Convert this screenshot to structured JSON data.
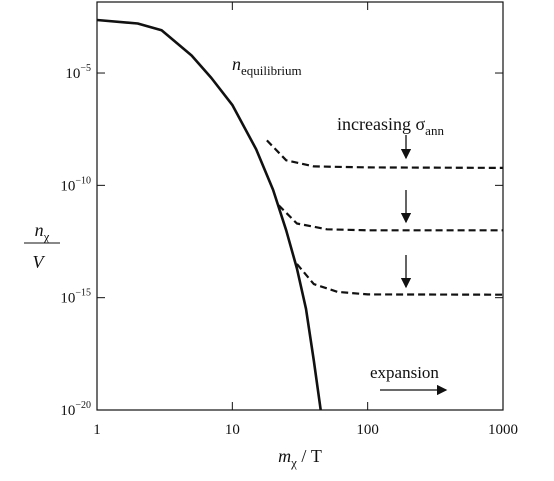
{
  "chart_data": {
    "type": "line",
    "log_x": true,
    "log_y": true,
    "xlim": [
      1,
      1000
    ],
    "ylim": [
      1e-20,
      0.0145
    ],
    "xticks": [
      1,
      10,
      100,
      1000
    ],
    "yticks": [
      {
        "value": 1e-05,
        "label": "10−5"
      },
      {
        "value": 1e-10,
        "label": "10−10"
      },
      {
        "value": 1e-15,
        "label": "10−15"
      },
      {
        "value": 1e-20,
        "label": "10−20"
      }
    ],
    "xlabel": {
      "text": "m",
      "sub": "χ",
      "after": " / T"
    },
    "ylabel": {
      "numerator": {
        "text": "n",
        "sub": "χ"
      },
      "denominator": "V"
    },
    "series": [
      {
        "color": "#111111",
        "style": "solid",
        "x": [
          1,
          2,
          3,
          5,
          7,
          10,
          15,
          20,
          25,
          30,
          35,
          40,
          45
        ],
        "values": [
          0.0023,
          0.0016,
          0.0008,
          6e-05,
          6e-06,
          3.8e-07,
          4e-09,
          6.3e-11,
          1e-12,
          2e-14,
          3.2e-16,
          1.6e-18,
          1e-20
        ]
      },
      {
        "color": "#111111",
        "style": "dashed",
        "x": [
          18,
          25,
          40,
          100,
          1000
        ],
        "values": [
          1e-08,
          1.3e-09,
          7e-10,
          6.3e-10,
          6e-10
        ]
      },
      {
        "color": "#111111",
        "style": "dashed",
        "x": [
          22,
          30,
          50,
          100,
          1000
        ],
        "values": [
          1.3e-11,
          2e-12,
          1.1e-12,
          1e-12,
          1e-12
        ]
      },
      {
        "color": "#111111",
        "style": "dashed",
        "x": [
          30,
          40,
          60,
          100,
          1000
        ],
        "values": [
          3.2e-14,
          4e-15,
          1.8e-15,
          1.4e-15,
          1.35e-15
        ]
      }
    ],
    "annotations": [
      {
        "text": "n",
        "sub": "equilibrium"
      },
      {
        "text": "increasing σ",
        "sub": "ann"
      },
      {
        "text": "expansion"
      }
    ]
  }
}
